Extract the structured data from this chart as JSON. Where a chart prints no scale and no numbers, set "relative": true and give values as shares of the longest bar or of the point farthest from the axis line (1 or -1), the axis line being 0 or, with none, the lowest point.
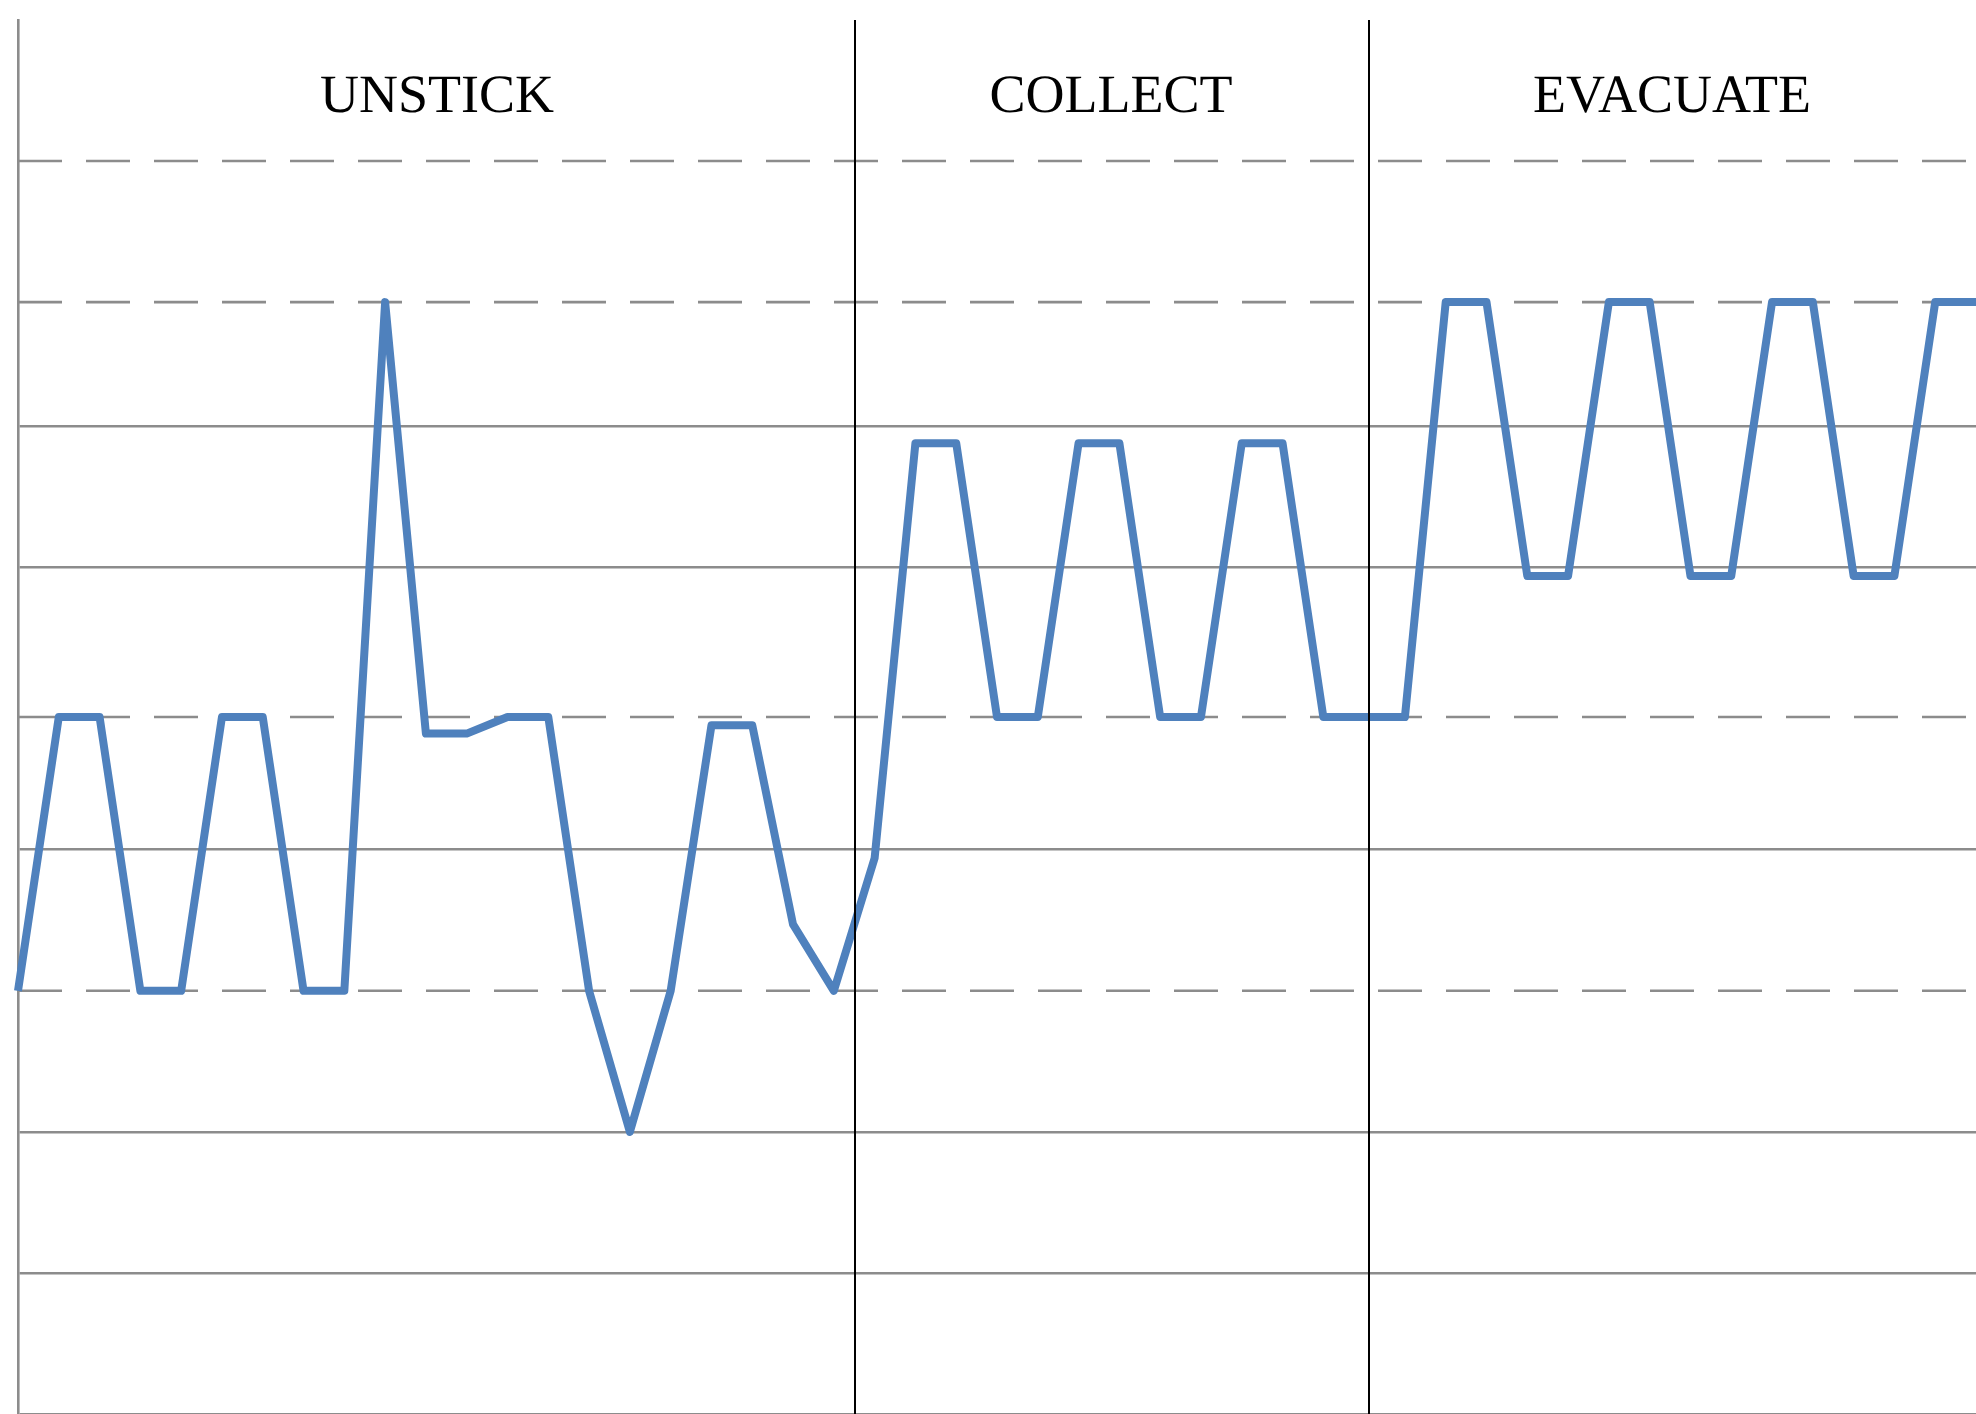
{
  "chart_data": {
    "type": "line",
    "relative": true,
    "legend": false,
    "grid": true,
    "marker": "none",
    "line_style": "solid",
    "categories": [
      null,
      null,
      null,
      null,
      null,
      null,
      null,
      null,
      null,
      null,
      null,
      null,
      null,
      null,
      null,
      null,
      null,
      null,
      null,
      null,
      null,
      null,
      null,
      null,
      null,
      null,
      null,
      null,
      null,
      null,
      null,
      null,
      null,
      null,
      null,
      null,
      null,
      null,
      null,
      null,
      null,
      null,
      null,
      null,
      null,
      null,
      null,
      null,
      null
    ],
    "series": [
      {
        "color": "#4f81bd",
        "values": [
          0.17,
          0.5,
          0.5,
          0.17,
          0.17,
          0.5,
          0.5,
          0.17,
          0.17,
          1,
          0.48,
          0.48,
          0.5,
          0.5,
          0.17,
          0,
          0.17,
          0.49,
          0.49,
          0.25,
          0.17,
          0.33,
          0.83,
          0.83,
          0.5,
          0.5,
          0.83,
          0.83,
          0.5,
          0.5,
          0.83,
          0.83,
          0.5,
          0.5,
          0.5,
          1,
          1,
          0.67,
          0.67,
          1,
          1,
          0.67,
          0.67,
          1,
          1,
          0.67,
          0.67,
          1,
          1
        ]
      }
    ],
    "ref_lines": [
      {
        "axis": "y",
        "value": 1.17,
        "line_style": "dashed"
      },
      {
        "axis": "y",
        "value": 1,
        "line_style": "dashed"
      },
      {
        "axis": "y",
        "value": 0.5,
        "line_style": "dashed"
      },
      {
        "axis": "y",
        "value": 0.17,
        "line_style": "dashed"
      }
    ],
    "annotations": [
      "UNSTICK",
      "COLLECT",
      "EVACUATE"
    ]
  }
}
